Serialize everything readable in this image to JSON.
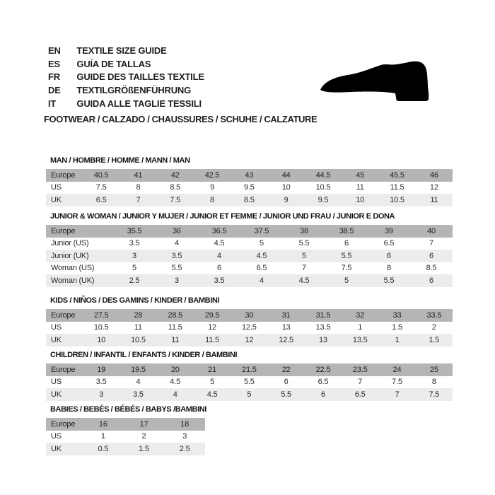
{
  "title": "Textile size guide",
  "colors": {
    "page_bg": "#ffffff",
    "text": "#1f1f1f",
    "header_row_bg": "#b5b5b5",
    "alt_row_bg": "#ececec",
    "shoe": "#000000"
  },
  "header": {
    "languages": [
      {
        "code": "EN",
        "text": "TEXTILE SIZE GUIDE"
      },
      {
        "code": "ES",
        "text": "GUÍA DE TALLAS"
      },
      {
        "code": "FR",
        "text": "GUIDE DES TAILLES TEXTILE"
      },
      {
        "code": "DE",
        "text": "TEXTILGRÖßENFÜHRUNG"
      },
      {
        "code": "IT",
        "text": "GUIDA ALLE TAGLIE TESSILI"
      }
    ],
    "shoe_icon": "shoe-silhouette",
    "category_line": "FOOTWEAR / CALZADO / CHAUSSURES / SCHUHE / CALZATURE"
  },
  "sections": [
    {
      "id": "man",
      "title": "MAN / HOMBRE / HOMME / MANN / MAN",
      "rows": [
        {
          "label": "Europe",
          "values": [
            "40.5",
            "41",
            "42",
            "42.5",
            "43",
            "44",
            "44.5",
            "45",
            "45.5",
            "46"
          ]
        },
        {
          "label": "US",
          "values": [
            "7.5",
            "8",
            "8.5",
            "9",
            "9.5",
            "10",
            "10.5",
            "11",
            "11.5",
            "12"
          ]
        },
        {
          "label": "UK",
          "values": [
            "6.5",
            "7",
            "7.5",
            "8",
            "8.5",
            "9",
            "9.5",
            "10",
            "10.5",
            "11"
          ]
        }
      ]
    },
    {
      "id": "junior-woman",
      "title": "JUNIOR & WOMAN / JUNIOR Y MUJER / JUNIOR ET FEMME / JUNIOR UND FRAU / JUNIOR E DONA",
      "rows": [
        {
          "label": "Europe",
          "values": [
            "35.5",
            "36",
            "36.5",
            "37.5",
            "38",
            "38.5",
            "39",
            "40"
          ]
        },
        {
          "label": "Junior (US)",
          "values": [
            "3.5",
            "4",
            "4.5",
            "5",
            "5.5",
            "6",
            "6.5",
            "7"
          ]
        },
        {
          "label": "Junior (UK)",
          "values": [
            "3",
            "3.5",
            "4",
            "4.5",
            "5",
            "5.5",
            "6",
            "6"
          ]
        },
        {
          "label": "Woman (US)",
          "values": [
            "5",
            "5.5",
            "6",
            "6.5",
            "7",
            "7.5",
            "8",
            "8.5"
          ]
        },
        {
          "label": "Woman (UK)",
          "values": [
            "2.5",
            "3",
            "3.5",
            "4",
            "4.5",
            "5",
            "5.5",
            "6"
          ]
        }
      ]
    },
    {
      "id": "kids",
      "title": "KIDS / NIÑOS / DES GAMINS / KINDER / BAMBINI",
      "rows": [
        {
          "label": "Europe",
          "values": [
            "27.5",
            "28",
            "28.5",
            "29.5",
            "30",
            "31",
            "31.5",
            "32",
            "33",
            "33.5"
          ]
        },
        {
          "label": "US",
          "values": [
            "10.5",
            "11",
            "11.5",
            "12",
            "12.5",
            "13",
            "13.5",
            "1",
            "1.5",
            "2"
          ]
        },
        {
          "label": "UK",
          "values": [
            "10",
            "10.5",
            "11",
            "11.5",
            "12",
            "12.5",
            "13",
            "13.5",
            "1",
            "1.5"
          ]
        }
      ]
    },
    {
      "id": "children",
      "title": "CHILDREN / INFANTIL / ENFANTS / KINDER / BAMBINI",
      "rows": [
        {
          "label": "Europe",
          "values": [
            "19",
            "19.5",
            "20",
            "21",
            "21.5",
            "22",
            "22.5",
            "23.5",
            "24",
            "25"
          ]
        },
        {
          "label": "US",
          "values": [
            "3.5",
            "4",
            "4.5",
            "5",
            "5.5",
            "6",
            "6.5",
            "7",
            "7.5",
            "8"
          ]
        },
        {
          "label": "UK",
          "values": [
            "3",
            "3.5",
            "4",
            "4.5",
            "5",
            "5.5",
            "6",
            "6.5",
            "7",
            "7.5"
          ]
        }
      ]
    },
    {
      "id": "babies",
      "title": "BABIES / BEBÉS / BÉBÉS / BABYS /BAMBINI",
      "rows": [
        {
          "label": "Europe",
          "values": [
            "16",
            "17",
            "18"
          ]
        },
        {
          "label": "US",
          "values": [
            "1",
            "2",
            "3"
          ]
        },
        {
          "label": "UK",
          "values": [
            "0.5",
            "1.5",
            "2.5"
          ]
        }
      ]
    }
  ]
}
